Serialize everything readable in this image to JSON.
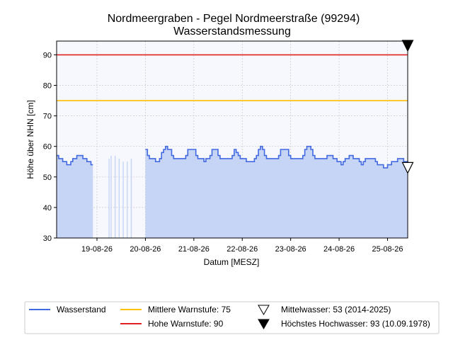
{
  "chart_data": {
    "type": "area",
    "title": "Nordmeergraben - Pegel Nordmeerstraße (99294)",
    "subtitle": "Wasserstandsmessung",
    "xlabel": "Datum [MESZ]",
    "ylabel": "Höhe über NHN [cm]",
    "ylim": [
      30,
      94.5
    ],
    "xlim": [
      "2026-08-18 16:00",
      "2026-08-25 22:00"
    ],
    "yticks": [
      30,
      40,
      50,
      60,
      70,
      80,
      90
    ],
    "xticks": [
      {
        "t": "2026-08-19 12:00",
        "label": "19-08-26"
      },
      {
        "t": "2026-08-20 12:00",
        "label": "20-08-26"
      },
      {
        "t": "2026-08-21 12:00",
        "label": "21-08-26"
      },
      {
        "t": "2026-08-22 12:00",
        "label": "22-08-26"
      },
      {
        "t": "2026-08-23 12:00",
        "label": "23-08-26"
      },
      {
        "t": "2026-08-24 12:00",
        "label": "24-08-26"
      },
      {
        "t": "2026-08-25 12:00",
        "label": "25-08-26"
      }
    ],
    "grid": true,
    "legend_position": "bottom",
    "colors": {
      "series": "#4169e1",
      "fill": "#c6d5f6",
      "warn_mid": "#ffc000",
      "warn_high": "#e02020",
      "plot_bg": "#f7f8fd",
      "grid": "#c8c8c8"
    },
    "series": [
      {
        "name": "Wasserstand",
        "segments": [
          [
            [
              "2026-08-18 16:00",
              57
            ],
            [
              "2026-08-18 17:00",
              56
            ],
            [
              "2026-08-18 19:00",
              55
            ],
            [
              "2026-08-18 21:00",
              54
            ],
            [
              "2026-08-18 23:00",
              55
            ],
            [
              "2026-08-19 00:00",
              56
            ],
            [
              "2026-08-19 02:00",
              57
            ],
            [
              "2026-08-19 05:00",
              56
            ],
            [
              "2026-08-19 07:00",
              55
            ],
            [
              "2026-08-19 09:00",
              54
            ],
            [
              "2026-08-19 10:00",
              54
            ]
          ],
          [
            [
              "2026-08-20 12:00",
              59
            ],
            [
              "2026-08-20 13:00",
              57
            ],
            [
              "2026-08-20 14:00",
              56
            ],
            [
              "2026-08-20 17:00",
              55
            ],
            [
              "2026-08-20 19:00",
              56
            ],
            [
              "2026-08-20 20:00",
              58
            ],
            [
              "2026-08-20 21:00",
              59
            ],
            [
              "2026-08-20 22:00",
              60
            ],
            [
              "2026-08-20 23:00",
              59
            ],
            [
              "2026-08-21 01:00",
              57
            ],
            [
              "2026-08-21 02:00",
              56
            ],
            [
              "2026-08-21 08:00",
              57
            ],
            [
              "2026-08-21 09:00",
              59
            ],
            [
              "2026-08-21 13:00",
              57
            ],
            [
              "2026-08-21 14:00",
              56
            ],
            [
              "2026-08-21 17:00",
              55
            ],
            [
              "2026-08-21 18:00",
              56
            ],
            [
              "2026-08-21 20:00",
              57
            ],
            [
              "2026-08-21 21:00",
              59
            ],
            [
              "2026-08-22 00:00",
              57
            ],
            [
              "2026-08-22 01:00",
              56
            ],
            [
              "2026-08-22 07:00",
              57
            ],
            [
              "2026-08-22 08:00",
              59
            ],
            [
              "2026-08-22 09:00",
              58
            ],
            [
              "2026-08-22 10:00",
              57
            ],
            [
              "2026-08-22 11:00",
              56
            ],
            [
              "2026-08-22 14:00",
              55
            ],
            [
              "2026-08-22 18:00",
              56
            ],
            [
              "2026-08-22 19:00",
              57
            ],
            [
              "2026-08-22 20:00",
              59
            ],
            [
              "2026-08-22 21:00",
              60
            ],
            [
              "2026-08-22 22:00",
              59
            ],
            [
              "2026-08-22 23:00",
              57
            ],
            [
              "2026-08-23 00:00",
              56
            ],
            [
              "2026-08-23 06:00",
              57
            ],
            [
              "2026-08-23 07:00",
              59
            ],
            [
              "2026-08-23 10:00",
              59
            ],
            [
              "2026-08-23 11:00",
              57
            ],
            [
              "2026-08-23 12:00",
              56
            ],
            [
              "2026-08-23 18:00",
              57
            ],
            [
              "2026-08-23 19:00",
              59
            ],
            [
              "2026-08-23 20:00",
              60
            ],
            [
              "2026-08-23 22:00",
              59
            ],
            [
              "2026-08-23 23:00",
              57
            ],
            [
              "2026-08-24 00:00",
              56
            ],
            [
              "2026-08-24 06:00",
              57
            ],
            [
              "2026-08-24 09:00",
              56
            ],
            [
              "2026-08-24 11:00",
              55
            ],
            [
              "2026-08-24 13:00",
              54
            ],
            [
              "2026-08-24 14:00",
              55
            ],
            [
              "2026-08-24 15:00",
              56
            ],
            [
              "2026-08-24 17:00",
              57
            ],
            [
              "2026-08-24 19:00",
              56
            ],
            [
              "2026-08-24 22:00",
              55
            ],
            [
              "2026-08-24 23:00",
              54
            ],
            [
              "2026-08-25 00:00",
              55
            ],
            [
              "2026-08-25 01:00",
              56
            ],
            [
              "2026-08-25 06:00",
              55
            ],
            [
              "2026-08-25 07:00",
              54
            ],
            [
              "2026-08-25 09:00",
              54
            ],
            [
              "2026-08-25 10:00",
              53
            ],
            [
              "2026-08-25 12:00",
              54
            ],
            [
              "2026-08-25 14:00",
              55
            ],
            [
              "2026-08-25 17:00",
              56
            ],
            [
              "2026-08-25 20:00",
              55
            ],
            [
              "2026-08-25 22:00",
              54
            ]
          ]
        ],
        "sparse": [
          [
            "2026-08-19 18:00",
            56
          ],
          [
            "2026-08-19 19:00",
            57
          ],
          [
            "2026-08-19 21:00",
            57
          ],
          [
            "2026-08-19 23:00",
            56
          ],
          [
            "2026-08-20 01:00",
            55
          ],
          [
            "2026-08-20 03:00",
            55
          ],
          [
            "2026-08-20 05:00",
            56
          ]
        ]
      },
      {
        "name": "Mittlere Warnstufe: 75",
        "type": "hline",
        "value": 75
      },
      {
        "name": "Hohe Warnstufe: 90",
        "type": "hline",
        "value": 90
      },
      {
        "name": "Mittelwasser: 53 (2014-2025)",
        "type": "marker",
        "marker": "open-triangle-down",
        "value": 53
      },
      {
        "name": "Höchstes Hochwasser: 93 (10.09.1978)",
        "type": "marker",
        "marker": "filled-triangle-down",
        "value": 93
      }
    ]
  }
}
